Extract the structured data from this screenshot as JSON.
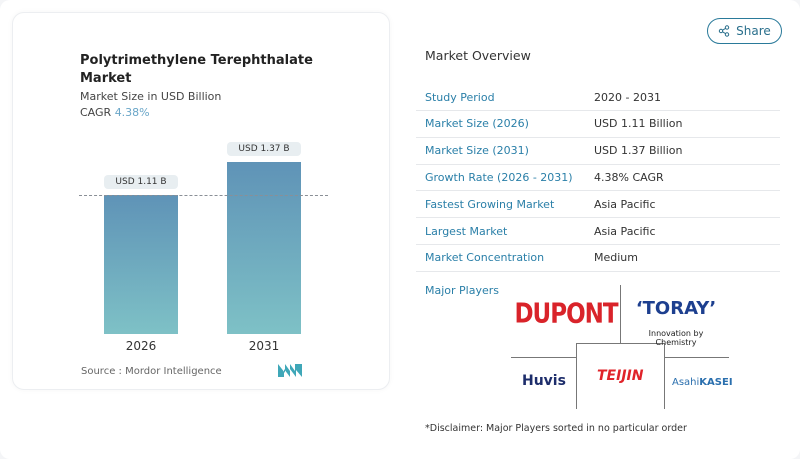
{
  "header": {
    "share_label": "Share",
    "share_icon": "share-icon"
  },
  "chart_data": {
    "type": "bar",
    "title": "Polytrimethylene Terephthalate Market",
    "subtitle": "Market Size in USD Billion",
    "cagr_label": "CAGR",
    "cagr_value": "4.38%",
    "categories": [
      "2026",
      "2031"
    ],
    "values": [
      1.11,
      1.37
    ],
    "data_labels": [
      "USD 1.11 B",
      "USD 1.37 B"
    ],
    "source": "Source :  Mordor Intelligence",
    "colors": {
      "bar_top": "#5f93b7",
      "bar_bottom": "#7ec1c6",
      "accent": "#6aa6c8"
    }
  },
  "overview": {
    "title": "Market Overview",
    "rows": [
      {
        "label": "Study Period",
        "value": "2020 - 2031"
      },
      {
        "label": "Market Size (2026)",
        "value": "USD 1.11 Billion"
      },
      {
        "label": "Market Size (2031)",
        "value": "USD 1.37 Billion"
      },
      {
        "label": "Growth Rate (2026 - 2031)",
        "value": "4.38% CAGR"
      },
      {
        "label": "Fastest Growing Market",
        "value": "Asia Pacific"
      },
      {
        "label": "Largest Market",
        "value": "Asia Pacific"
      },
      {
        "label": "Market Concentration",
        "value": "Medium"
      }
    ]
  },
  "players": {
    "title": "Major Players",
    "logos": {
      "dupont": "DUPONT",
      "toray": "‘TORAY’",
      "toray_tag": "Innovation by Chemistry",
      "huvis": "Huvis",
      "teijin": "TEIJIN",
      "asahi_a": "Asahi",
      "asahi_b": "KASEI"
    },
    "disclaimer": "*Disclaimer: Major Players sorted in no particular order"
  }
}
